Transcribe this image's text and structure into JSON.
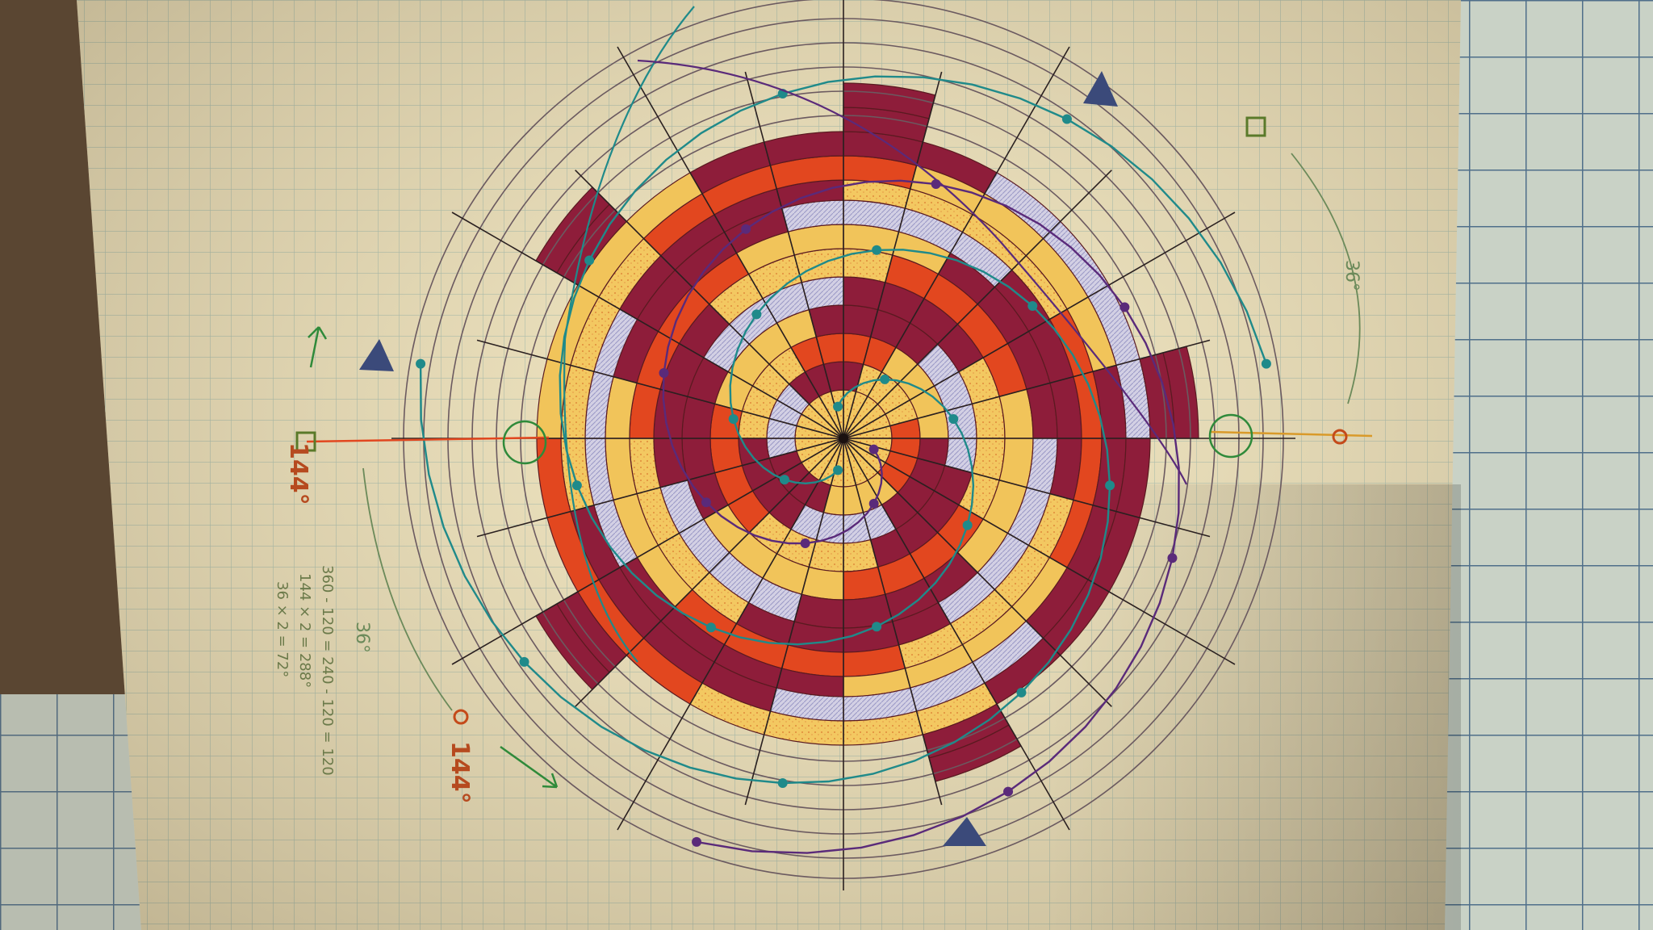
{
  "notes": {
    "arc_top_right": "36°",
    "arc_bottom_left": "36°",
    "degree_left": "144°",
    "degree_bottom": "144°",
    "calc_line1": "360 - 120 = 240 - 120 = 120",
    "calc_line2": "144 × 2 = 288°",
    "calc_line3": "36 × 2 = 72°"
  },
  "colors": {
    "paper": "#efe4bf",
    "grid": "#9fb7a8",
    "maroon": "#8e1d3a",
    "orange_red": "#e2471f",
    "gold": "#f1c45a",
    "lavender": "#c8c5de",
    "teal": "#1f8a8a",
    "purple": "#5a2a7a",
    "navy": "#3b4a7a"
  },
  "icons": [
    "triangle-marker-icon",
    "circle-marker-icon",
    "square-marker-icon",
    "arrow-icon"
  ]
}
